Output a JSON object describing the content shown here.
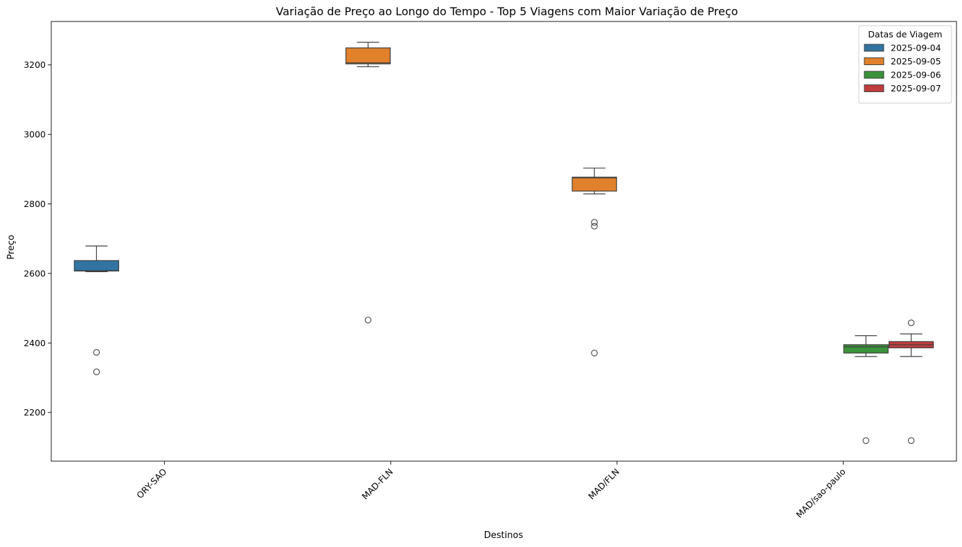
{
  "chart_data": {
    "type": "boxplot",
    "title": "Variação de Preço ao Longo do Tempo - Top 5 Viagens com Maior Variação de Preço",
    "xlabel": "Destinos",
    "ylabel": "Preço",
    "categories": [
      "ORY-SAO",
      "MAD-FLN",
      "MAD/FLN",
      "MAD/sao-paulo"
    ],
    "ylim": [
      2060,
      3325
    ],
    "yticks": [
      2200,
      2400,
      2600,
      2800,
      3000,
      3200
    ],
    "ytick_labels": [
      "2200",
      "2400",
      "2600",
      "2800",
      "3000",
      "3200"
    ],
    "legend_title": "Datas de Viagem",
    "hues": [
      "2025-09-04",
      "2025-09-05",
      "2025-09-06",
      "2025-09-07"
    ],
    "colors": [
      "#3274a1",
      "#e1812c",
      "#3a923a",
      "#c03d3e"
    ],
    "boxes": [
      {
        "category": "ORY-SAO",
        "hue": "2025-09-04",
        "q1": 2607,
        "median": 2608,
        "q3": 2637,
        "whisker_low": 2605,
        "whisker_high": 2679,
        "outliers": [
          2373,
          2317
        ]
      },
      {
        "category": "MAD-FLN",
        "hue": "2025-09-05",
        "q1": 3203,
        "median": 3206,
        "q3": 3249,
        "whisker_low": 3195,
        "whisker_high": 3265,
        "outliers": [
          2466
        ]
      },
      {
        "category": "MAD/FLN",
        "hue": "2025-09-05",
        "q1": 2837,
        "median": 2875,
        "q3": 2877,
        "whisker_low": 2829,
        "whisker_high": 2903,
        "outliers": [
          2747,
          2736,
          2371
        ]
      },
      {
        "category": "MAD/sao-paulo",
        "hue": "2025-09-06",
        "q1": 2371,
        "median": 2389,
        "q3": 2395,
        "whisker_low": 2361,
        "whisker_high": 2421,
        "outliers": [
          2119
        ]
      },
      {
        "category": "MAD/sao-paulo",
        "hue": "2025-09-07",
        "q1": 2386,
        "median": 2395,
        "q3": 2404,
        "whisker_low": 2361,
        "whisker_high": 2426,
        "outliers": [
          2458,
          2119
        ]
      }
    ]
  }
}
